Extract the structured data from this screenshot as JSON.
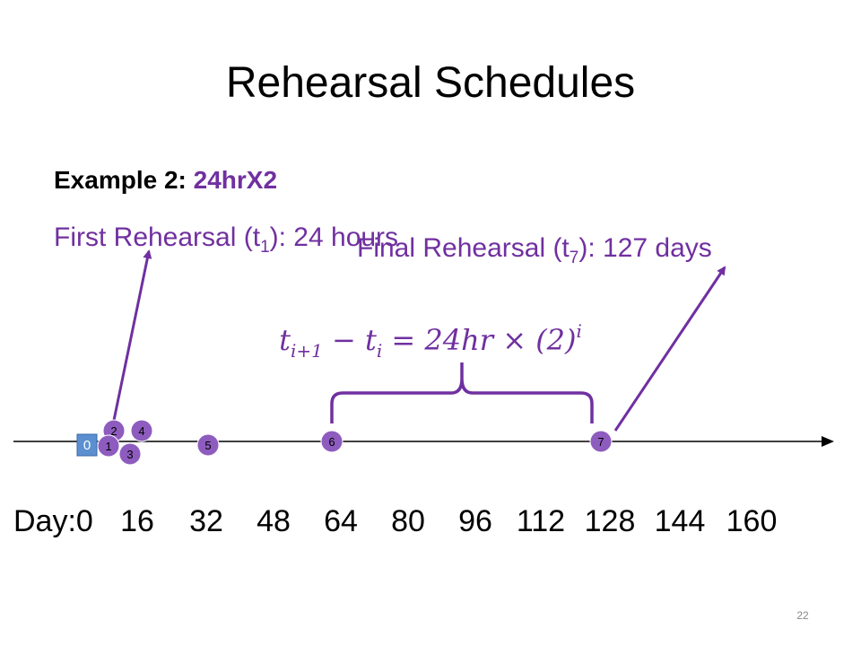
{
  "title": "Rehearsal Schedules",
  "example": {
    "label": "Example 2:",
    "name": "24hrX2"
  },
  "first_rehearsal": {
    "before": "First Rehearsal (t",
    "sub": "1",
    "after": "): 24 hours"
  },
  "final_rehearsal": {
    "before": "Final Rehearsal (t",
    "sub": "7",
    "after": "): 127 days"
  },
  "formula": {
    "t1": "t",
    "s1": "i+1",
    "minus": " − ",
    "t2": "t",
    "s2": "i",
    "rhs": " = 24hr × (2)",
    "sup": "i"
  },
  "axis_labels": [
    "Day:0",
    "16",
    "32",
    "48",
    "64",
    "80",
    "96",
    "112",
    "128",
    "144",
    "160"
  ],
  "markers": [
    "0",
    "1",
    "2",
    "3",
    "4",
    "5",
    "6",
    "7"
  ],
  "page_number": "22"
}
